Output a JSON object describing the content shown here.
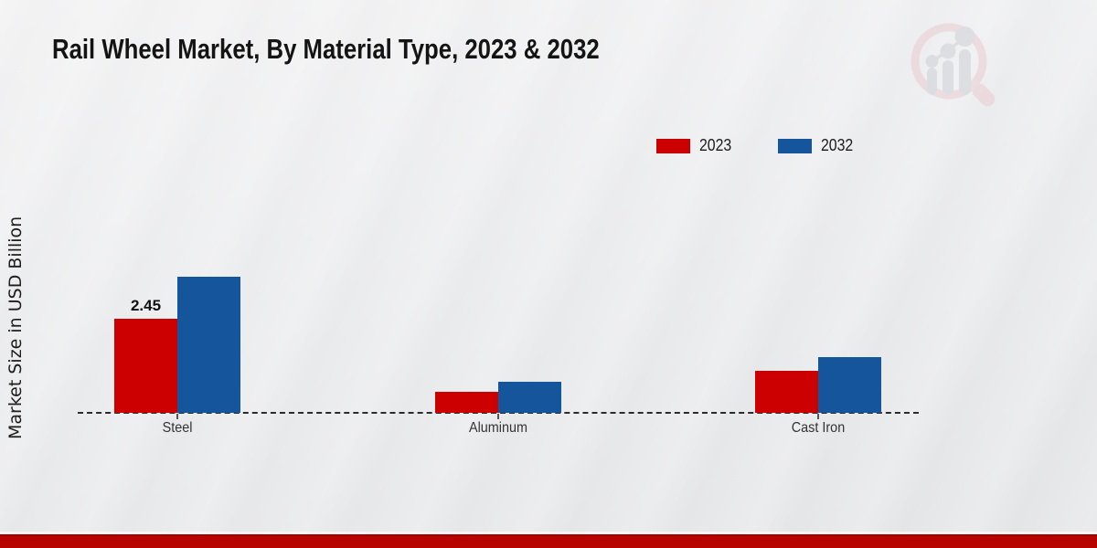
{
  "title": "Rail Wheel Market, By Material Type, 2023 & 2032",
  "ylabel": "Market Size in USD Billion",
  "legend": [
    {
      "label": "2023",
      "color": "#cc0000"
    },
    {
      "label": "2032",
      "color": "#14559b"
    }
  ],
  "chart_data": {
    "type": "bar",
    "title": "Rail Wheel Market, By Material Type, 2023 & 2032",
    "ylabel": "Market Size in USD Billion",
    "categories": [
      "Steel",
      "Aluminum",
      "Cast Iron"
    ],
    "series": [
      {
        "name": "2023",
        "color": "#cc0000",
        "values": [
          2.45,
          0.55,
          1.1
        ]
      },
      {
        "name": "2032",
        "color": "#14559b",
        "values": [
          3.55,
          0.8,
          1.45
        ]
      }
    ],
    "value_labels": [
      {
        "series": "2023",
        "category": "Steel",
        "text": "2.45"
      }
    ],
    "ylim": [
      0,
      4
    ],
    "grid": false,
    "baseline_style": "dashed",
    "legend_position": "top-right"
  },
  "watermark": {
    "name": "magnifier-bar-chart-logo",
    "ring_color": "#e9ccd1",
    "bars_color": "#ccd0d5"
  },
  "footer": {
    "accent_color": "#b70400"
  }
}
